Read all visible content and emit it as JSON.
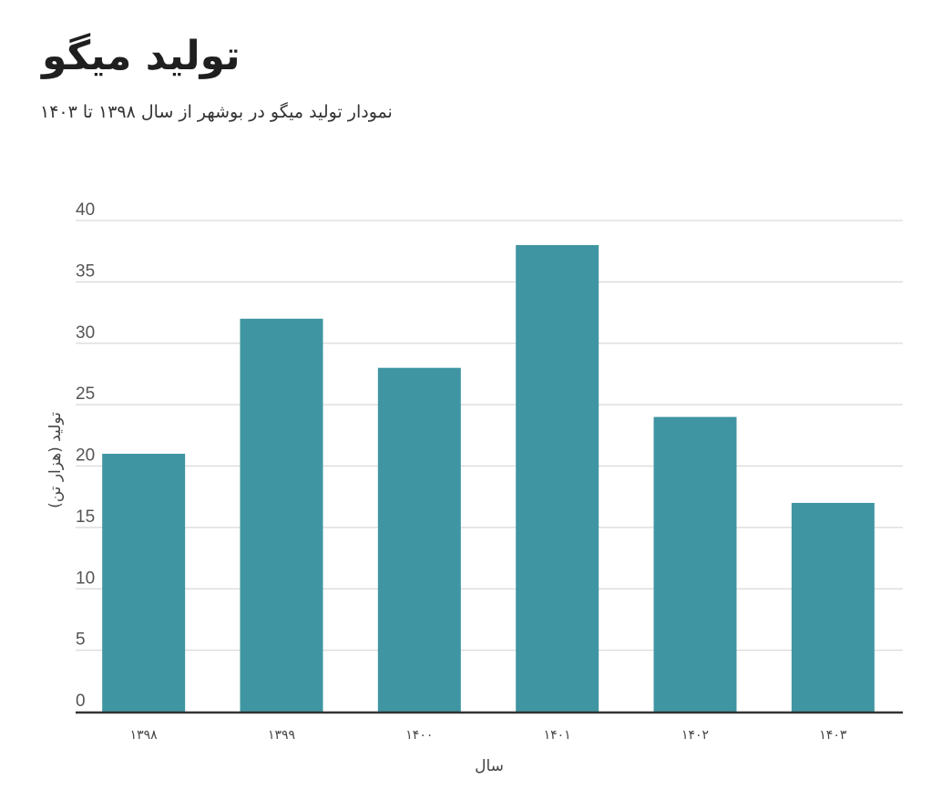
{
  "chart_data": {
    "type": "bar",
    "title": "تولید میگو",
    "subtitle": "نمودار تولید میگو در بوشهر از سال ۱۳۹۸ تا ۱۴۰۳",
    "xlabel": "سال",
    "ylabel": "تولید (هزار تن)",
    "categories": [
      "۱۳۹۸",
      "۱۳۹۹",
      "۱۴۰۰",
      "۱۴۰۱",
      "۱۴۰۲",
      "۱۴۰۳"
    ],
    "values": [
      21,
      32,
      28,
      38,
      24,
      17
    ],
    "ylim": [
      0,
      40
    ],
    "yticks": [
      "0",
      "5",
      "10",
      "15",
      "20",
      "25",
      "30",
      "35",
      "40"
    ],
    "grid": true,
    "legend": "none",
    "bar_color": "#4095a2",
    "grid_color": "#d9d9d9",
    "axis_color": "#333333"
  }
}
